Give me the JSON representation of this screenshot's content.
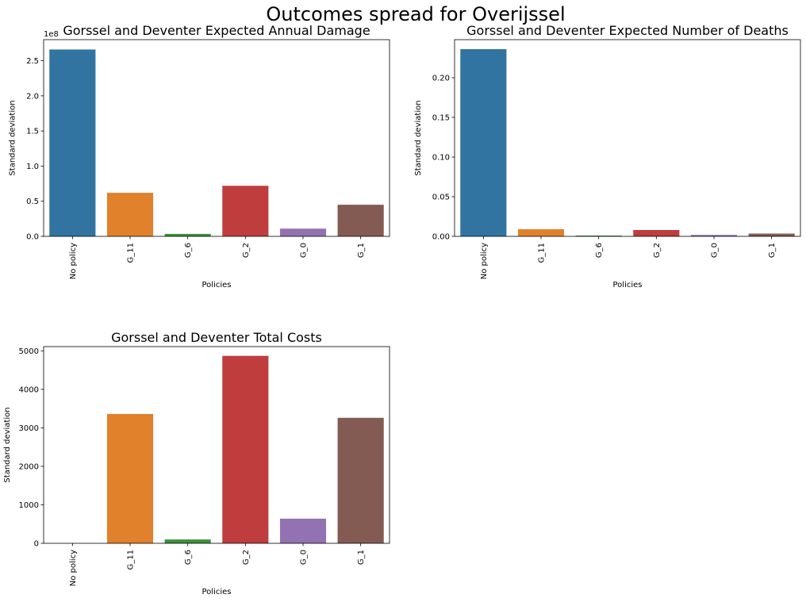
{
  "suptitle": "Outcomes spread for Overijssel",
  "colors": {
    "No policy": "#3274a1",
    "G_11": "#e1812c",
    "G_6": "#3a923a",
    "G_2": "#c03d3e",
    "G_0": "#9372b2",
    "G_1": "#845b53"
  },
  "chart_data": [
    {
      "type": "bar",
      "title": "Gorssel and Deventer Expected Annual Damage",
      "xlabel": "Policies",
      "ylabel": "Standard deviation",
      "offset_label": "1e8",
      "categories": [
        "No policy",
        "G_11",
        "G_6",
        "G_2",
        "G_0",
        "G_1"
      ],
      "values": [
        266000000,
        62000000,
        3500000,
        72000000,
        11000000,
        45000000
      ],
      "ylim": [
        0,
        280000000
      ],
      "yticks": [
        0,
        50000000,
        100000000,
        150000000,
        200000000,
        250000000
      ],
      "yticklabels": [
        "0.0",
        "0.5",
        "1.0",
        "1.5",
        "2.0",
        "2.5"
      ]
    },
    {
      "type": "bar",
      "title": "Gorssel and Deventer Expected Number of Deaths",
      "xlabel": "Policies",
      "ylabel": "Standard deviation",
      "offset_label": "",
      "categories": [
        "No policy",
        "G_11",
        "G_6",
        "G_2",
        "G_0",
        "G_1"
      ],
      "values": [
        0.236,
        0.009,
        0.001,
        0.008,
        0.0018,
        0.0035
      ],
      "ylim": [
        0,
        0.248
      ],
      "yticks": [
        0,
        0.05,
        0.1,
        0.15,
        0.2
      ],
      "yticklabels": [
        "0.00",
        "0.05",
        "0.10",
        "0.15",
        "0.20"
      ]
    },
    {
      "type": "bar",
      "title": "Gorssel and Deventer Total Costs",
      "xlabel": "Policies",
      "ylabel": "Standard deviation",
      "offset_label": "",
      "categories": [
        "No policy",
        "G_11",
        "G_6",
        "G_2",
        "G_0",
        "G_1"
      ],
      "values": [
        0,
        3360,
        100,
        4870,
        640,
        3260
      ],
      "ylim": [
        0,
        5110
      ],
      "yticks": [
        0,
        1000,
        2000,
        3000,
        4000,
        5000
      ],
      "yticklabels": [
        "0",
        "1000",
        "2000",
        "3000",
        "4000",
        "5000"
      ]
    }
  ]
}
